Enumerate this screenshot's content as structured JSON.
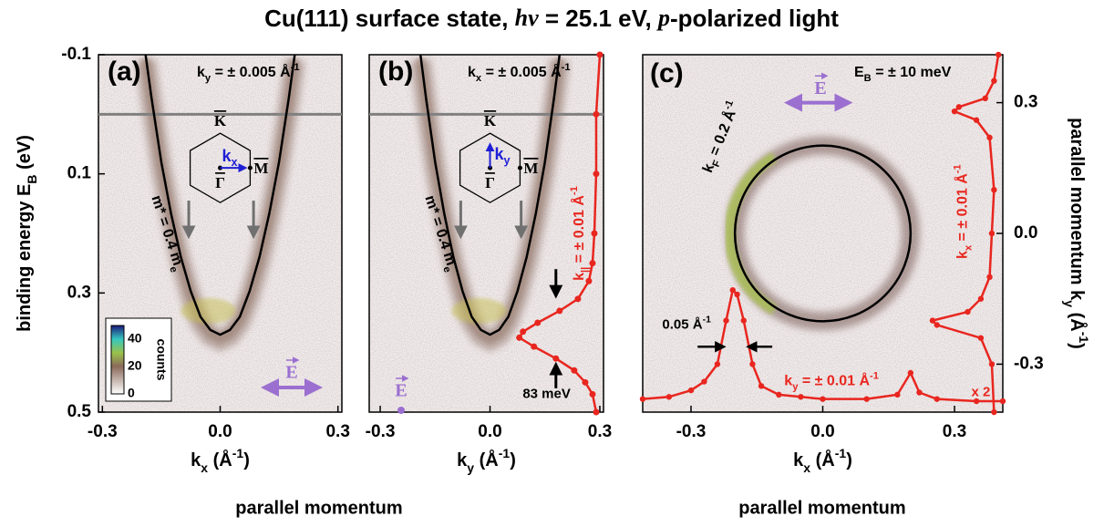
{
  "title": [
    "Cu(111) surface state, ",
    {
      "i": "hν"
    },
    " = 25.1 eV, ",
    {
      "i": "p"
    },
    "-polarized light"
  ],
  "footer": [
    "parallel momentum",
    "parallel momentum"
  ],
  "chart_data": [
    {
      "type": "dispersion",
      "panel_label": "(a)",
      "annotation": [
        "k",
        {
          "sub": "y"
        },
        " = ± 0.005 Å",
        {
          "sup": "-1"
        }
      ],
      "xlabel": [
        "k",
        {
          "sub": "x"
        },
        " (Å",
        {
          "sup": "-1"
        },
        ")"
      ],
      "ylabel": [
        "binding energy E",
        {
          "sub": "B"
        },
        " (eV)"
      ],
      "xlim": [
        -0.31,
        0.31
      ],
      "xticks": [
        -0.3,
        {
          "value": 0,
          "label": "0.0"
        },
        0.3
      ],
      "ylim": [
        -0.1,
        0.5
      ],
      "yticks": [
        -0.1,
        0.1,
        0.3,
        0.5
      ],
      "y_inverted": true,
      "fermi_level": 0,
      "fermi_color": "#808080",
      "band": {
        "x": [
          -0.19,
          -0.175,
          -0.15,
          -0.125,
          -0.1,
          -0.075,
          -0.05,
          -0.025,
          0,
          0.025,
          0.05,
          0.075,
          0.1,
          0.125,
          0.15,
          0.175,
          0.19
        ],
        "values": [
          -0.1,
          -0.028,
          0.08,
          0.167,
          0.24,
          0.297,
          0.34,
          0.362,
          0.37,
          0.362,
          0.34,
          0.297,
          0.24,
          0.167,
          0.08,
          -0.028,
          -0.1
        ],
        "color": "#000000",
        "label": [
          "m* = 0.4 m",
          {
            "sub": "e"
          }
        ]
      },
      "inset": {
        "labels": [
          "K",
          "M",
          "Γ"
        ],
        "arrow": [
          "k",
          {
            "sub": "x"
          }
        ],
        "arrow_color": "#1f1fd6"
      },
      "colorbar": {
        "ticks": [
          0,
          20,
          40
        ],
        "lim": [
          0,
          50
        ],
        "label": "counts"
      },
      "polarization": {
        "label": "E",
        "color": "#9b6fd0"
      }
    },
    {
      "type": "dispersion",
      "panel_label": "(b)",
      "annotation": [
        "k",
        {
          "sub": "x"
        },
        " = ± 0.005 Å",
        {
          "sup": "-1"
        }
      ],
      "xlabel": [
        "k",
        {
          "sub": "y"
        },
        " (Å",
        {
          "sup": "-1"
        },
        ")"
      ],
      "xlim": [
        -0.33,
        0.31
      ],
      "xticks": [
        -0.3,
        {
          "value": 0,
          "label": "0.0"
        },
        0.3
      ],
      "ylim": [
        -0.1,
        0.5
      ],
      "y_inverted": true,
      "fermi_level": 0,
      "fermi_color": "#808080",
      "band": {
        "x": [
          -0.19,
          -0.175,
          -0.15,
          -0.125,
          -0.1,
          -0.075,
          -0.05,
          -0.025,
          0,
          0.025,
          0.05,
          0.075,
          0.1,
          0.125,
          0.15,
          0.175,
          0.19
        ],
        "values": [
          -0.1,
          -0.028,
          0.08,
          0.167,
          0.24,
          0.297,
          0.34,
          0.362,
          0.37,
          0.362,
          0.34,
          0.297,
          0.24,
          0.167,
          0.08,
          -0.028,
          -0.1
        ],
        "color": "#000000",
        "label": [
          "m* = 0.4 m",
          {
            "sub": "e"
          }
        ]
      },
      "inset": {
        "labels": [
          "K",
          "M",
          "Γ"
        ],
        "arrow": [
          "k",
          {
            "sub": "y"
          }
        ],
        "arrow_color": "#1f1fd6"
      },
      "edc": {
        "energy": [
          -0.1,
          0.0,
          0.1,
          0.2,
          0.25,
          0.28,
          0.31,
          0.33,
          0.35,
          0.365,
          0.375,
          0.39,
          0.41,
          0.43,
          0.45,
          0.47,
          0.5
        ],
        "intensity": [
          0.3,
          0.29,
          0.29,
          0.285,
          0.28,
          0.27,
          0.24,
          0.19,
          0.13,
          0.09,
          0.08,
          0.12,
          0.18,
          0.23,
          0.26,
          0.28,
          0.29
        ],
        "color": "#e8261f",
        "label": [
          "k",
          {
            "sub": "||"
          },
          " = ± 0.01 Å",
          {
            "sup": "-1"
          }
        ]
      },
      "width_label": "83 meV",
      "polarization": {
        "label": "E",
        "color": "#9b6fd0"
      }
    },
    {
      "type": "map",
      "panel_label": "(c)",
      "annotation": [
        "E",
        {
          "sub": "B"
        },
        " = ± 10 meV"
      ],
      "xlabel": [
        "k",
        {
          "sub": "x"
        },
        " (Å",
        {
          "sup": "-1"
        },
        ")"
      ],
      "ylabel": [
        "parallel momentum k",
        {
          "sub": "y"
        },
        " (Å",
        {
          "sup": "-1"
        },
        ")"
      ],
      "xlim": [
        -0.41,
        0.41
      ],
      "xticks": [
        -0.3,
        {
          "value": 0,
          "label": "0.0"
        },
        0.3
      ],
      "ylim": [
        -0.41,
        0.41
      ],
      "yticks": [
        0.3,
        {
          "value": 0,
          "label": "0.0"
        },
        -0.3
      ],
      "fermi_circle_radius": 0.2,
      "circle_color": "#000000",
      "circle_label": [
        "k",
        {
          "sub": "F"
        },
        " = 0.2 Å",
        {
          "sup": "-1"
        }
      ],
      "mdc_x": {
        "kx": [
          -0.41,
          -0.35,
          -0.3,
          -0.27,
          -0.24,
          -0.22,
          -0.205,
          -0.195,
          -0.18,
          -0.16,
          -0.14,
          -0.1,
          -0.05,
          0,
          0.1,
          0.17,
          0.2,
          0.22,
          0.26,
          0.35,
          0.41
        ],
        "ky": [
          -0.38,
          -0.375,
          -0.36,
          -0.34,
          -0.3,
          -0.2,
          -0.13,
          -0.14,
          -0.2,
          -0.3,
          -0.35,
          -0.37,
          -0.375,
          -0.38,
          -0.38,
          -0.37,
          -0.32,
          -0.365,
          -0.38,
          -0.385,
          -0.385
        ],
        "color": "#e8261f",
        "label": [
          "k",
          {
            "sub": "y"
          },
          " = ± 0.01 Å",
          {
            "sup": "-1"
          }
        ],
        "scale_label": "x 2"
      },
      "mdc_y": {
        "ky": [
          0.41,
          0.35,
          0.31,
          0.29,
          0.28,
          0.26,
          0.22,
          0.1,
          0,
          -0.1,
          -0.15,
          -0.18,
          -0.2,
          -0.21,
          -0.24,
          -0.3,
          -0.41
        ],
        "kx": [
          0.4,
          0.39,
          0.37,
          0.31,
          0.3,
          0.35,
          0.38,
          0.39,
          0.385,
          0.38,
          0.36,
          0.33,
          0.25,
          0.26,
          0.36,
          0.385,
          0.39
        ],
        "color": "#e8261f",
        "label": [
          "k",
          {
            "sub": "x"
          },
          " = ± 0.01 Å",
          {
            "sup": "-1"
          }
        ]
      },
      "width_label": [
        "0.05 Å",
        {
          "sup": "-1"
        }
      ],
      "polarization": {
        "label": "E",
        "color": "#9b6fd0"
      }
    }
  ]
}
